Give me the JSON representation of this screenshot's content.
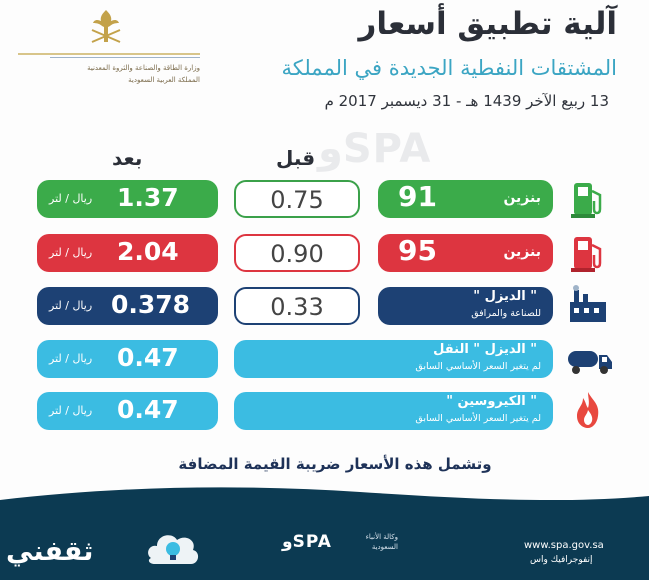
{
  "header": {
    "title": "آلية تطبيق أسعار",
    "subtitle": "المشتقات النفطية الجديدة في المملكة",
    "date": "13 ربيع الآخر 1439 هـ - 31 ديسمبر 2017 م",
    "ministry_line1": "وزارة الطاقة والصناعة والثروة المعدنية",
    "ministry_line2": "المملكة العربية السعودية"
  },
  "columns": {
    "after": "بعد",
    "before": "قبل"
  },
  "rows": [
    {
      "fuel_num": "91",
      "fuel_word": "بنزين",
      "before": "0.75",
      "after": "1.37",
      "unit": "ريال / لتر",
      "color": "#3bab4a",
      "icon": "gas-pump-icon"
    },
    {
      "fuel_num": "95",
      "fuel_word": "بنزين",
      "before": "0.90",
      "after": "2.04",
      "unit": "ريال / لتر",
      "color": "#dd3540",
      "icon": "gas-pump-icon"
    },
    {
      "name": "\" الديزل \"",
      "note": "للصناعة والمرافق",
      "before": "0.33",
      "after": "0.378",
      "unit": "ريال / لتر",
      "color": "#1d4174",
      "icon": "factory-icon"
    },
    {
      "name": "\" الديزل \" النقل",
      "note": "لم يتغير السعر الأساسي السابق",
      "after": "0.47",
      "unit": "ريال / لتر",
      "color": "#3bbce2",
      "icon": "tanker-truck-icon"
    },
    {
      "name": "\" الكيروسين \"",
      "note": "لم يتغير السعر الأساسي السابق",
      "after": "0.47",
      "unit": "ريال / لتر",
      "color": "#3bbce2",
      "icon": "flame-icon"
    }
  ],
  "vat_note": "وتشمل هذه الأسعار ضريبة القيمة المضافة",
  "watermark": "وSPA",
  "footer": {
    "brand": "ثقفني",
    "spa_logo": "وSPA",
    "spa_tagline": "وكالة الأنباء السعودية",
    "url": "www.spa.gov.sa",
    "url_ar": "إنفوجرافيك واس"
  }
}
